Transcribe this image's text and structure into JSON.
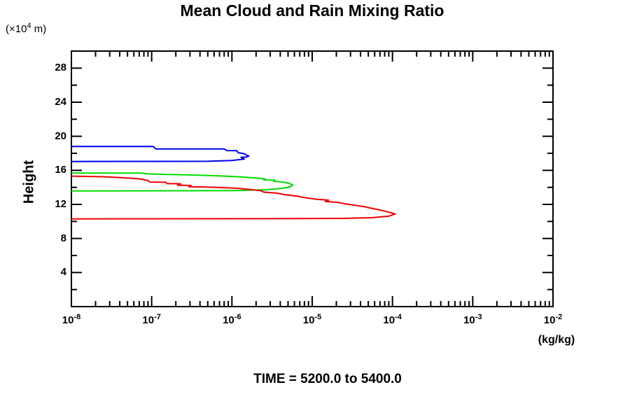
{
  "title": "Mean Cloud and Rain Mixing Ratio",
  "y_unit_label": {
    "prefix": "(×10",
    "sup": "4",
    "suffix": " m)"
  },
  "y_axis_title": "Height",
  "x_unit_label": "(kg/kg)",
  "footer": "TIME = 5200.0 to 5400.0",
  "chart_data": {
    "type": "line",
    "title": "Mean Cloud and Rain Mixing Ratio",
    "xlabel": "(kg/kg)",
    "ylabel": "Height (×10^4 m)",
    "x_scale": "log",
    "xlim": [
      1e-08,
      0.01
    ],
    "ylim": [
      0,
      30
    ],
    "x_tick_base": "10",
    "x_major_exponents": [
      -8,
      -7,
      -6,
      -5,
      -4,
      -3,
      -2
    ],
    "x_minor_multiples": [
      2,
      3,
      4,
      5,
      6,
      7,
      8,
      9
    ],
    "y_major_ticks": [
      4,
      8,
      12,
      16,
      20,
      24,
      28
    ],
    "y_minor_ticks": [
      2,
      6,
      10,
      14,
      18,
      22,
      26,
      30
    ],
    "grid": false,
    "legend": "none",
    "frame_color": "#000000",
    "series": [
      {
        "name": "blue",
        "color": "#0000ee",
        "points": [
          [
            1e-08,
            18.8
          ],
          [
            1.05e-07,
            18.8
          ],
          [
            1.12e-07,
            18.52
          ],
          [
            8e-07,
            18.52
          ],
          [
            8.6e-07,
            18.32
          ],
          [
            1.15e-06,
            18.3
          ],
          [
            1.2e-06,
            18.06
          ],
          [
            1.42e-06,
            17.96
          ],
          [
            1.5e-06,
            17.8
          ],
          [
            1.62e-06,
            17.7
          ],
          [
            1.52e-06,
            17.56
          ],
          [
            1.3e-06,
            17.52
          ],
          [
            1.42e-06,
            17.32
          ],
          [
            1e-06,
            17.16
          ],
          [
            5e-07,
            17.06
          ],
          [
            1e-08,
            17.04
          ]
        ]
      },
      {
        "name": "green",
        "color": "#00dd00",
        "points": [
          [
            1e-08,
            15.68
          ],
          [
            7.5e-08,
            15.68
          ],
          [
            9e-08,
            15.58
          ],
          [
            1.6e-07,
            15.52
          ],
          [
            3.2e-07,
            15.45
          ],
          [
            7e-07,
            15.35
          ],
          [
            1.3e-06,
            15.22
          ],
          [
            2.1e-06,
            15.08
          ],
          [
            2.6e-06,
            14.98
          ],
          [
            2.5e-06,
            14.88
          ],
          [
            3.4e-06,
            14.85
          ],
          [
            3.3e-06,
            14.72
          ],
          [
            4.3e-06,
            14.62
          ],
          [
            5.1e-06,
            14.48
          ],
          [
            5.75e-06,
            14.28
          ],
          [
            5.3e-06,
            14.06
          ],
          [
            4.2e-06,
            13.88
          ],
          [
            2.6e-06,
            13.72
          ],
          [
            1.1e-06,
            13.63
          ],
          [
            3e-07,
            13.6
          ],
          [
            1e-08,
            13.58
          ]
        ]
      },
      {
        "name": "red",
        "color": "#ee0000",
        "points": [
          [
            1e-08,
            15.32
          ],
          [
            2.5e-08,
            15.25
          ],
          [
            4.5e-08,
            15.12
          ],
          [
            7e-08,
            15.0
          ],
          [
            9e-08,
            14.8
          ],
          [
            9.5e-08,
            14.62
          ],
          [
            1.5e-07,
            14.6
          ],
          [
            1.55e-07,
            14.44
          ],
          [
            2.3e-07,
            14.42
          ],
          [
            2.1e-07,
            14.25
          ],
          [
            3.1e-07,
            14.22
          ],
          [
            2.9e-07,
            14.08
          ],
          [
            4.6e-07,
            14.05
          ],
          [
            7e-07,
            13.98
          ],
          [
            1.15e-06,
            13.9
          ],
          [
            1.7e-06,
            13.74
          ],
          [
            2.3e-06,
            13.6
          ],
          [
            2.5e-06,
            13.44
          ],
          [
            3.6e-06,
            13.32
          ],
          [
            4.6e-06,
            13.14
          ],
          [
            6.5e-06,
            12.96
          ],
          [
            8e-06,
            12.8
          ],
          [
            1.15e-05,
            12.6
          ],
          [
            1.6e-05,
            12.5
          ],
          [
            1.45e-05,
            12.34
          ],
          [
            2.1e-05,
            12.24
          ],
          [
            2.6e-05,
            12.06
          ],
          [
            3.3e-05,
            11.92
          ],
          [
            4.4e-05,
            11.74
          ],
          [
            5.8e-05,
            11.5
          ],
          [
            7.8e-05,
            11.24
          ],
          [
            9.8e-05,
            11.0
          ],
          [
            0.000108,
            10.88
          ],
          [
            9e-05,
            10.62
          ],
          [
            5.5e-05,
            10.44
          ],
          [
            2.4e-05,
            10.36
          ],
          [
            2e-06,
            10.32
          ],
          [
            1e-08,
            10.3
          ]
        ]
      }
    ]
  }
}
